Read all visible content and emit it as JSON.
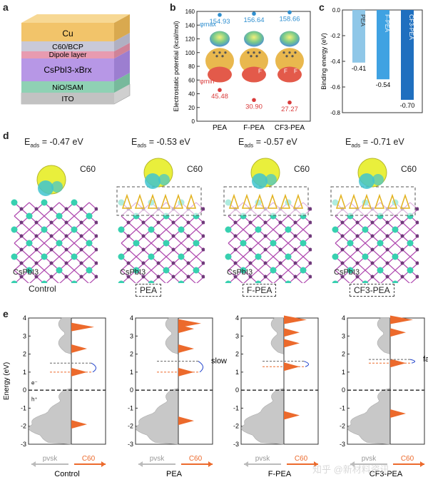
{
  "panel_labels": {
    "a": "a",
    "b": "b",
    "c": "c",
    "d": "d",
    "e": "e"
  },
  "panel_a": {
    "layers": [
      "Cu",
      "C60/BCP",
      "Dipole layer",
      "CsPbI3-xBrx",
      "NiO/SAM",
      "ITO"
    ],
    "colors": {
      "cu": "#f2c46a",
      "c60": "#c9c9d8",
      "dipole": "#e89bb0",
      "perov": "#b797e6",
      "nio": "#8fd1b4",
      "ito": "#cfcfcf"
    }
  },
  "chart_data": [
    {
      "type": "scatter",
      "panel": "b",
      "title": "",
      "ylabel": "Electrostatic potential (kcal/mol)",
      "xlabel": "",
      "ylim": [
        0,
        160
      ],
      "yticks": [
        0,
        20,
        40,
        60,
        80,
        100,
        120,
        140,
        160
      ],
      "categories": [
        "PEA",
        "F-PEA",
        "CF3-PEA"
      ],
      "series": [
        {
          "name": "φmax",
          "values": [
            154.93,
            156.64,
            158.66
          ],
          "labels": [
            "154.93",
            "156.64",
            "158.66"
          ],
          "color": "#2f8fd0"
        },
        {
          "name": "φmin",
          "values": [
            45.48,
            30.9,
            27.27
          ],
          "labels": [
            "45.48",
            "30.90",
            "27.27"
          ],
          "color": "#d93a3a"
        }
      ],
      "annotations": {
        "phi_max": "φmax",
        "phi_min": "φmin",
        "fluoro": "F"
      }
    },
    {
      "type": "bar",
      "panel": "c",
      "ylabel": "Binding energy (eV)",
      "ylim": [
        -0.8,
        0
      ],
      "yticks": [
        0,
        -0.2,
        -0.4,
        -0.6,
        -0.8
      ],
      "categories": [
        "PEA",
        "F-PEA",
        "CF3-PEA"
      ],
      "values": [
        -0.41,
        -0.54,
        -0.7
      ],
      "labels": [
        "-0.41",
        "-0.54",
        "-0.70"
      ],
      "colors": [
        "#8fc7e8",
        "#3fa2e2",
        "#1f6fbf"
      ]
    },
    {
      "type": "area",
      "panel": "e",
      "ylabel": "Energy (eV)",
      "ylim": [
        -3,
        4
      ],
      "yticks": [
        -3,
        -2,
        -1,
        0,
        1,
        2,
        3,
        4
      ],
      "subplots": [
        {
          "name": "Control",
          "c60_peaks": [
            3.5,
            2.3,
            1.0,
            -1.9
          ],
          "dashed_pvsk": 1.5,
          "dashed_c60": 1.0,
          "note": ""
        },
        {
          "name": "PEA",
          "c60_peaks": [
            3.7,
            3.4,
            2.3,
            1.0,
            -1.7
          ],
          "dashed_pvsk": 1.6,
          "dashed_c60": 1.0,
          "note": "slow"
        },
        {
          "name": "F-PEA",
          "c60_peaks": [
            3.9,
            3.2,
            2.6,
            1.3,
            -1.4
          ],
          "dashed_pvsk": 1.6,
          "dashed_c60": 1.3,
          "note": ""
        },
        {
          "name": "CF3-PEA",
          "c60_peaks": [
            3.9,
            3.2,
            1.5,
            -1.3
          ],
          "dashed_pvsk": 1.7,
          "dashed_c60": 1.5,
          "note": "fast"
        }
      ],
      "axis_labels": {
        "e_minus": "e⁻",
        "h_plus": "h⁺",
        "pvsk": "pvsk",
        "c60": "C60"
      }
    }
  ],
  "panel_d": {
    "items": [
      {
        "eads_prefix": "E",
        "eads_sub": "ads",
        "eads_value": "= -0.47 eV",
        "c60": "C60",
        "perov": "CsPbI3",
        "name": "Control",
        "boxed": false
      },
      {
        "eads_prefix": "E",
        "eads_sub": "ads",
        "eads_value": "= -0.53 eV",
        "c60": "C60",
        "perov": "CsPbI3",
        "name": "PEA",
        "boxed": true
      },
      {
        "eads_prefix": "E",
        "eads_sub": "ads",
        "eads_value": "= -0.57 eV",
        "c60": "C60",
        "perov": "CsPbI3",
        "name": "F-PEA",
        "boxed": true
      },
      {
        "eads_prefix": "E",
        "eads_sub": "ads",
        "eads_value": "= -0.71 eV",
        "c60": "C60",
        "perov": "CsPbI3",
        "name": "CF3-PEA",
        "boxed": true
      }
    ]
  },
  "watermark": "知乎 @新材料资讯"
}
